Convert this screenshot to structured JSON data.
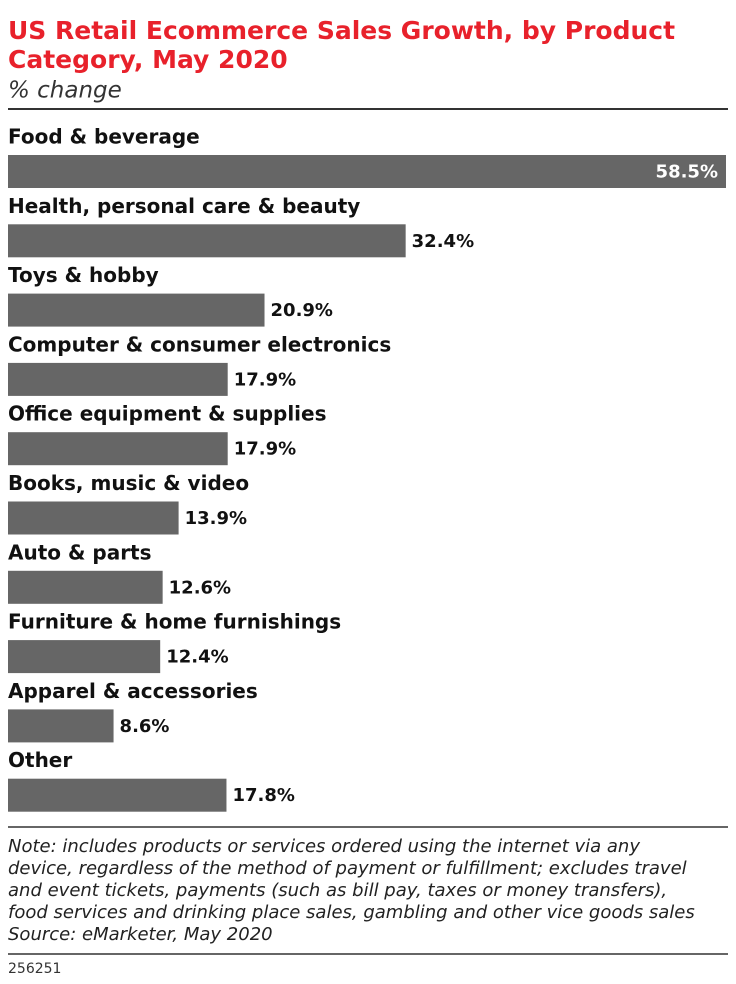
{
  "chart_data": {
    "type": "hbar",
    "title": [
      "US Retail Ecommerce Sales Growth, by Product",
      "Category, May 2020"
    ],
    "subtitle": "% change",
    "categories": [
      "Food & beverage",
      "Health, personal care & beauty",
      "Toys & hobby",
      "Computer & consumer electronics",
      "Office equipment & supplies",
      "Books, music & video",
      "Auto & parts",
      "Furniture & home furnishings",
      "Apparel & accessories",
      "Other"
    ],
    "values": [
      58.5,
      32.4,
      20.9,
      17.9,
      17.9,
      13.9,
      12.6,
      12.4,
      8.6,
      17.8
    ],
    "value_labels": [
      "58.5%",
      "32.4%",
      "20.9%",
      "17.9%",
      "17.9%",
      "13.9%",
      "12.6%",
      "12.4%",
      "8.6%",
      "17.8%"
    ],
    "color": "#666666",
    "note": [
      "Note: includes products or services ordered using the internet via any",
      "device, regardless of the method of payment or fulfillment; excludes travel",
      "and event tickets, payments (such as bill pay, taxes or money transfers),",
      "food services and drinking place sales, gambling and other vice goods sales"
    ],
    "source": "Source: eMarketer, May 2020",
    "chart_id": "256251"
  }
}
